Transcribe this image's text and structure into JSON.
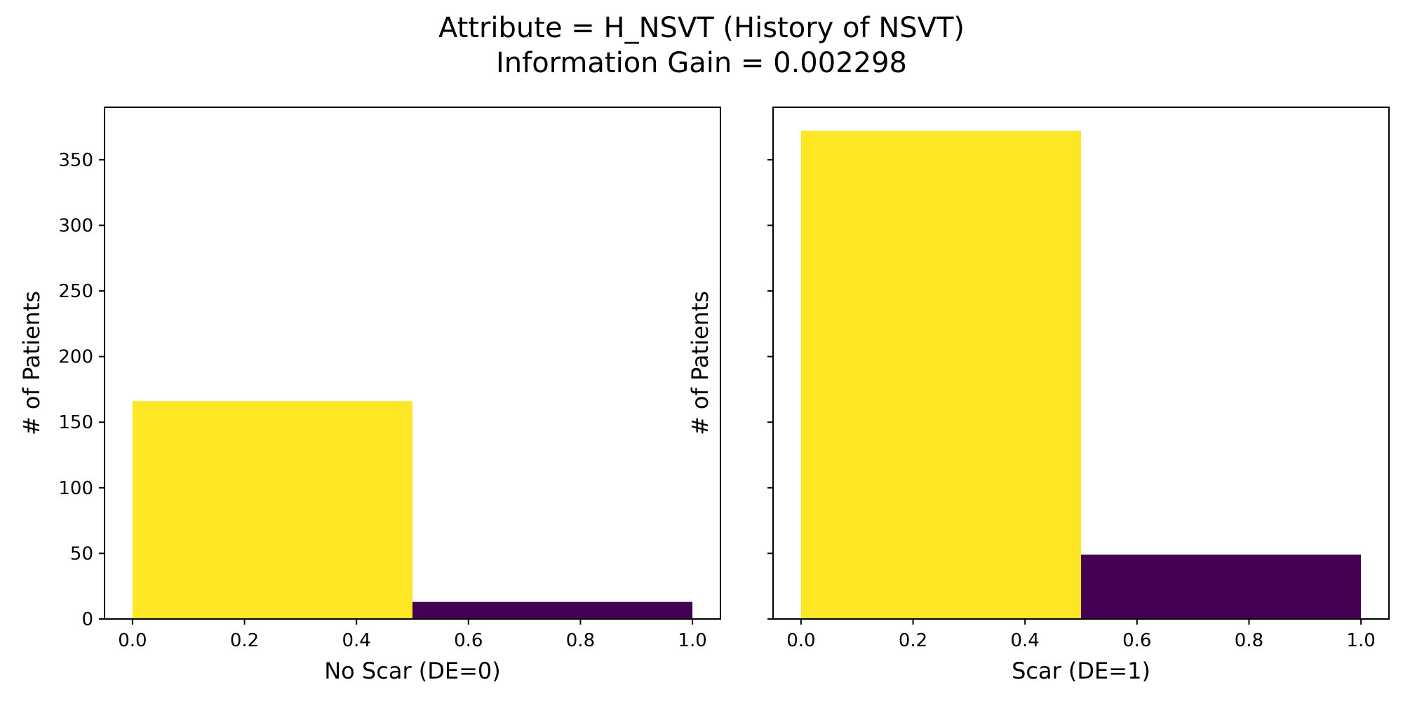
{
  "figure": {
    "title": "Attribute = H_NSVT (History of NSVT)",
    "subtitle": "Information Gain = 0.002298"
  },
  "chart_data": [
    {
      "type": "bar",
      "xlabel": "No Scar (DE=0)",
      "ylabel": "# of Patients",
      "xlim": [
        -0.05,
        1.05
      ],
      "ylim": [
        0,
        390
      ],
      "xticks": [
        "0.0",
        "0.2",
        "0.4",
        "0.6",
        "0.8",
        "1.0"
      ],
      "yticks": [
        "0",
        "50",
        "100",
        "150",
        "200",
        "250",
        "300",
        "350"
      ],
      "bars": [
        {
          "x_start": 0.0,
          "x_end": 0.5,
          "value": 166,
          "color": "#fde725"
        },
        {
          "x_start": 0.5,
          "x_end": 1.0,
          "value": 13,
          "color": "#440154"
        }
      ]
    },
    {
      "type": "bar",
      "xlabel": "Scar (DE=1)",
      "ylabel": "# of Patients",
      "xlim": [
        -0.05,
        1.05
      ],
      "ylim": [
        0,
        390
      ],
      "xticks": [
        "0.0",
        "0.2",
        "0.4",
        "0.6",
        "0.8",
        "1.0"
      ],
      "yticks": [
        "",
        "",
        "",
        "",
        "",
        "",
        "",
        ""
      ],
      "bars": [
        {
          "x_start": 0.0,
          "x_end": 0.5,
          "value": 372,
          "color": "#fde725"
        },
        {
          "x_start": 0.5,
          "x_end": 1.0,
          "value": 49,
          "color": "#440154"
        }
      ]
    }
  ]
}
